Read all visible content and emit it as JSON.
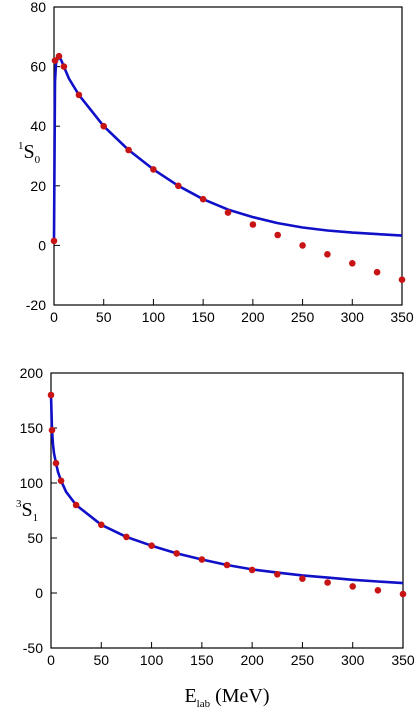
{
  "chart_data": [
    {
      "type": "line",
      "ylabel": {
        "sup": "1",
        "main": "S",
        "sub": "0"
      },
      "xlim": [
        0,
        350
      ],
      "ylim": [
        -20,
        80
      ],
      "xticks": [
        0,
        50,
        100,
        150,
        200,
        250,
        300,
        350
      ],
      "yticks": [
        -20,
        0,
        20,
        40,
        60,
        80
      ],
      "grid": false,
      "line_color": "#1010c8",
      "point_color": "#c81414",
      "series": [
        {
          "kind": "line",
          "x": [
            0,
            1,
            2,
            4,
            5,
            7,
            10,
            15,
            25,
            50,
            75,
            100,
            125,
            150,
            175,
            200,
            225,
            250,
            275,
            300,
            325,
            350
          ],
          "y": [
            2,
            55,
            61,
            63,
            63,
            62.3,
            60,
            56,
            50.5,
            40,
            32,
            25.5,
            20,
            15.5,
            12,
            9.5,
            7.5,
            6,
            5,
            4.3,
            3.8,
            3.3
          ]
        },
        {
          "kind": "scatter",
          "x": [
            1,
            5,
            10,
            25,
            50,
            75,
            100,
            125,
            150,
            175,
            200,
            225,
            250,
            275,
            300,
            325,
            350
          ],
          "y": [
            62,
            63.5,
            60,
            50.5,
            40,
            32,
            25.5,
            20,
            15.5,
            11,
            7,
            3.5,
            0,
            -3,
            -6,
            -9,
            -11.5
          ]
        },
        {
          "kind": "scatter",
          "x": [
            0
          ],
          "y": [
            1.5
          ]
        }
      ]
    },
    {
      "type": "line",
      "ylabel": {
        "sup": "3",
        "main": "S",
        "sub": "1"
      },
      "xlabel": {
        "main": "E",
        "sub": "lab",
        "unit": " (MeV)"
      },
      "xlim": [
        0,
        350
      ],
      "ylim": [
        -50,
        200
      ],
      "xticks": [
        0,
        50,
        100,
        150,
        200,
        250,
        300,
        350
      ],
      "yticks": [
        -50,
        0,
        50,
        100,
        150,
        200
      ],
      "grid": false,
      "line_color": "#1010c8",
      "point_color": "#c81414",
      "series": [
        {
          "kind": "line",
          "x": [
            0,
            1,
            2,
            3,
            5,
            7,
            10,
            15,
            25,
            50,
            75,
            100,
            125,
            150,
            175,
            200,
            225,
            250,
            275,
            300,
            325,
            350
          ],
          "y": [
            180,
            148,
            135,
            127,
            118,
            110,
            102,
            92,
            80,
            62,
            51,
            43,
            36,
            30.5,
            25.5,
            21.5,
            18.5,
            16,
            14,
            12,
            10.5,
            9
          ]
        },
        {
          "kind": "scatter",
          "x": [
            0,
            1,
            5,
            10,
            25,
            50,
            75,
            100,
            125,
            150,
            175,
            200,
            225,
            250,
            275,
            300,
            325,
            350
          ],
          "y": [
            180,
            148,
            118,
            102,
            80,
            62,
            51,
            43,
            36,
            30.5,
            25.5,
            21,
            17,
            13,
            9.5,
            6,
            2.5,
            -1
          ]
        }
      ]
    }
  ]
}
